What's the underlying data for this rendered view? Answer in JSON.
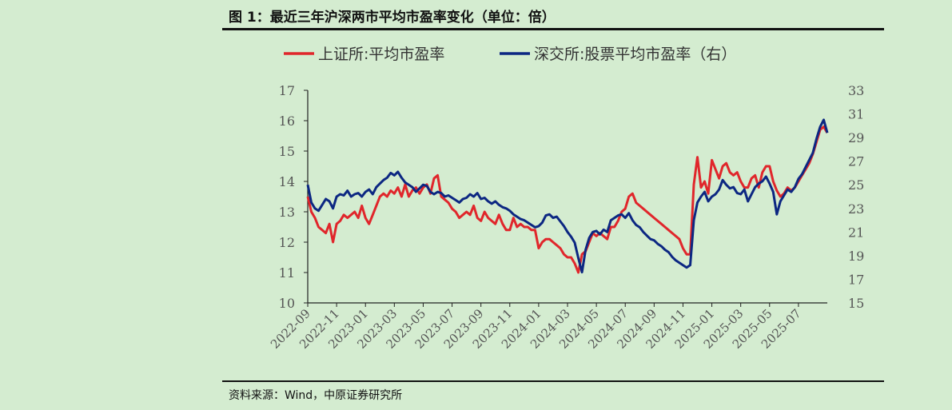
{
  "figure_title": "图 1：最近三年沪深两市平均市盈率变化（单位：倍）",
  "source": "资料来源：Wind，中原证券研究所",
  "chart_data": {
    "type": "line",
    "title": "图 1：最近三年沪深两市平均市盈率变化（单位：倍）",
    "x_tick_labels": [
      "2022-09",
      "2022-11",
      "2023-01",
      "2023-03",
      "2023-05",
      "2023-07",
      "2023-09",
      "2023-11",
      "2024-01",
      "2024-03",
      "2024-05",
      "2024-07",
      "2024-09",
      "2024-11",
      "2025-01",
      "2025-03",
      "2025-05",
      "2025-07"
    ],
    "x_range": [
      0,
      36
    ],
    "y_left": {
      "ylim": [
        10,
        17
      ],
      "ticks": [
        "10",
        "11",
        "12",
        "13",
        "14",
        "15",
        "16",
        "17"
      ]
    },
    "y_right": {
      "ylim": [
        15,
        33
      ],
      "ticks": [
        "15",
        "17",
        "19",
        "21",
        "23",
        "25",
        "27",
        "29",
        "31",
        "33"
      ]
    },
    "grid": false,
    "legend_position": "top",
    "series": [
      {
        "name": "上证所:平均市盈率",
        "axis": "left",
        "color": "#e0262b",
        "points": [
          [
            0.0,
            13.5
          ],
          [
            0.25,
            13.0
          ],
          [
            0.5,
            12.8
          ],
          [
            0.75,
            12.5
          ],
          [
            1.0,
            12.4
          ],
          [
            1.25,
            12.3
          ],
          [
            1.5,
            12.6
          ],
          [
            1.75,
            12.0
          ],
          [
            2.0,
            12.6
          ],
          [
            2.25,
            12.7
          ],
          [
            2.5,
            12.9
          ],
          [
            2.75,
            12.8
          ],
          [
            3.0,
            12.9
          ],
          [
            3.25,
            13.0
          ],
          [
            3.5,
            12.8
          ],
          [
            3.75,
            13.2
          ],
          [
            4.0,
            12.8
          ],
          [
            4.25,
            12.6
          ],
          [
            4.5,
            12.9
          ],
          [
            4.75,
            13.2
          ],
          [
            5.0,
            13.5
          ],
          [
            5.25,
            13.6
          ],
          [
            5.5,
            13.5
          ],
          [
            5.75,
            13.7
          ],
          [
            6.0,
            13.6
          ],
          [
            6.25,
            13.8
          ],
          [
            6.5,
            13.5
          ],
          [
            6.75,
            13.9
          ],
          [
            7.0,
            13.5
          ],
          [
            7.25,
            13.7
          ],
          [
            7.5,
            13.8
          ],
          [
            7.75,
            13.6
          ],
          [
            8.0,
            13.8
          ],
          [
            8.25,
            13.9
          ],
          [
            8.5,
            13.6
          ],
          [
            8.75,
            14.1
          ],
          [
            9.0,
            14.2
          ],
          [
            9.25,
            13.5
          ],
          [
            9.5,
            13.4
          ],
          [
            9.75,
            13.3
          ],
          [
            10.0,
            13.1
          ],
          [
            10.25,
            13.0
          ],
          [
            10.5,
            12.8
          ],
          [
            10.75,
            12.9
          ],
          [
            11.0,
            13.0
          ],
          [
            11.25,
            12.9
          ],
          [
            11.5,
            13.2
          ],
          [
            11.75,
            12.8
          ],
          [
            12.0,
            12.7
          ],
          [
            12.25,
            13.0
          ],
          [
            12.5,
            12.8
          ],
          [
            12.75,
            12.7
          ],
          [
            13.0,
            12.6
          ],
          [
            13.25,
            12.9
          ],
          [
            13.5,
            12.6
          ],
          [
            13.75,
            12.4
          ],
          [
            14.0,
            12.4
          ],
          [
            14.25,
            12.8
          ],
          [
            14.5,
            12.5
          ],
          [
            14.75,
            12.6
          ],
          [
            15.0,
            12.5
          ],
          [
            15.25,
            12.5
          ],
          [
            15.5,
            12.4
          ],
          [
            15.75,
            12.4
          ],
          [
            16.0,
            11.8
          ],
          [
            16.25,
            12.0
          ],
          [
            16.5,
            12.1
          ],
          [
            16.75,
            12.1
          ],
          [
            17.0,
            12.0
          ],
          [
            17.25,
            11.9
          ],
          [
            17.5,
            11.8
          ],
          [
            17.75,
            11.6
          ],
          [
            18.0,
            11.5
          ],
          [
            18.25,
            11.5
          ],
          [
            18.5,
            11.3
          ],
          [
            18.75,
            11.0
          ],
          [
            19.0,
            11.6
          ],
          [
            19.25,
            11.7
          ],
          [
            19.5,
            12.0
          ],
          [
            19.75,
            12.3
          ],
          [
            20.0,
            12.2
          ],
          [
            20.25,
            12.3
          ],
          [
            20.5,
            12.2
          ],
          [
            20.75,
            12.1
          ],
          [
            21.0,
            12.5
          ],
          [
            21.25,
            12.5
          ],
          [
            21.5,
            12.7
          ],
          [
            21.75,
            13.0
          ],
          [
            22.0,
            13.1
          ],
          [
            22.25,
            13.5
          ],
          [
            22.5,
            13.6
          ],
          [
            22.75,
            13.3
          ],
          [
            23.0,
            13.2
          ],
          [
            23.25,
            13.1
          ],
          [
            23.5,
            13.0
          ],
          [
            23.75,
            12.9
          ],
          [
            24.0,
            12.8
          ],
          [
            24.25,
            12.7
          ],
          [
            24.5,
            12.6
          ],
          [
            24.75,
            12.5
          ],
          [
            25.0,
            12.4
          ],
          [
            25.25,
            12.3
          ],
          [
            25.5,
            12.2
          ],
          [
            25.75,
            12.1
          ],
          [
            26.0,
            11.8
          ],
          [
            26.25,
            11.6
          ],
          [
            26.5,
            11.6
          ],
          [
            26.75,
            13.9
          ],
          [
            27.0,
            14.8
          ],
          [
            27.25,
            13.8
          ],
          [
            27.5,
            14.0
          ],
          [
            27.75,
            13.6
          ],
          [
            28.0,
            14.7
          ],
          [
            28.25,
            14.4
          ],
          [
            28.5,
            14.1
          ],
          [
            28.75,
            14.5
          ],
          [
            29.0,
            14.6
          ],
          [
            29.25,
            14.3
          ],
          [
            29.5,
            14.2
          ],
          [
            29.75,
            14.3
          ],
          [
            30.0,
            14.0
          ],
          [
            30.25,
            13.8
          ],
          [
            30.5,
            13.8
          ],
          [
            30.75,
            14.1
          ],
          [
            31.0,
            14.2
          ],
          [
            31.25,
            13.8
          ],
          [
            31.5,
            14.3
          ],
          [
            31.75,
            14.5
          ],
          [
            32.0,
            14.5
          ],
          [
            32.25,
            14.0
          ],
          [
            32.5,
            13.7
          ],
          [
            32.75,
            13.5
          ],
          [
            33.0,
            13.6
          ],
          [
            33.25,
            13.8
          ],
          [
            33.5,
            13.7
          ],
          [
            33.75,
            13.8
          ],
          [
            34.0,
            14.0
          ],
          [
            34.25,
            14.2
          ],
          [
            34.5,
            14.4
          ],
          [
            34.75,
            14.6
          ],
          [
            35.0,
            14.9
          ],
          [
            35.25,
            15.3
          ],
          [
            35.5,
            15.7
          ],
          [
            35.75,
            15.8
          ],
          [
            36.0,
            15.6
          ]
        ]
      },
      {
        "name": "深交所:股票平均市盈率（右）",
        "axis": "right",
        "color": "#0c2782",
        "points": [
          [
            0.0,
            25.0
          ],
          [
            0.25,
            23.5
          ],
          [
            0.5,
            23.0
          ],
          [
            0.75,
            22.8
          ],
          [
            1.0,
            23.3
          ],
          [
            1.25,
            23.8
          ],
          [
            1.5,
            23.6
          ],
          [
            1.75,
            23.0
          ],
          [
            2.0,
            24.0
          ],
          [
            2.25,
            24.2
          ],
          [
            2.5,
            24.1
          ],
          [
            2.75,
            24.5
          ],
          [
            3.0,
            24.0
          ],
          [
            3.25,
            24.2
          ],
          [
            3.5,
            24.3
          ],
          [
            3.75,
            24.0
          ],
          [
            4.0,
            24.4
          ],
          [
            4.25,
            24.6
          ],
          [
            4.5,
            24.2
          ],
          [
            4.75,
            24.8
          ],
          [
            5.0,
            25.1
          ],
          [
            5.25,
            25.4
          ],
          [
            5.5,
            25.6
          ],
          [
            5.75,
            26.0
          ],
          [
            6.0,
            25.8
          ],
          [
            6.25,
            26.1
          ],
          [
            6.5,
            25.6
          ],
          [
            6.75,
            25.2
          ],
          [
            7.0,
            25.0
          ],
          [
            7.25,
            24.8
          ],
          [
            7.5,
            24.4
          ],
          [
            7.75,
            24.7
          ],
          [
            8.0,
            25.0
          ],
          [
            8.25,
            24.9
          ],
          [
            8.5,
            24.4
          ],
          [
            8.75,
            24.2
          ],
          [
            9.0,
            24.4
          ],
          [
            9.25,
            24.3
          ],
          [
            9.5,
            24.0
          ],
          [
            9.75,
            24.1
          ],
          [
            10.0,
            23.9
          ],
          [
            10.25,
            23.7
          ],
          [
            10.5,
            23.5
          ],
          [
            10.75,
            23.8
          ],
          [
            11.0,
            23.9
          ],
          [
            11.25,
            24.2
          ],
          [
            11.5,
            24.0
          ],
          [
            11.75,
            24.3
          ],
          [
            12.0,
            23.8
          ],
          [
            12.25,
            23.9
          ],
          [
            12.5,
            23.6
          ],
          [
            12.75,
            23.4
          ],
          [
            13.0,
            23.6
          ],
          [
            13.25,
            23.3
          ],
          [
            13.5,
            23.1
          ],
          [
            13.75,
            23.0
          ],
          [
            14.0,
            22.8
          ],
          [
            14.25,
            22.5
          ],
          [
            14.5,
            22.3
          ],
          [
            14.75,
            22.1
          ],
          [
            15.0,
            22.0
          ],
          [
            15.25,
            21.8
          ],
          [
            15.5,
            21.6
          ],
          [
            15.75,
            21.4
          ],
          [
            16.0,
            21.5
          ],
          [
            16.25,
            21.8
          ],
          [
            16.5,
            22.4
          ],
          [
            16.75,
            22.5
          ],
          [
            17.0,
            22.2
          ],
          [
            17.25,
            22.3
          ],
          [
            17.5,
            21.9
          ],
          [
            17.75,
            21.5
          ],
          [
            18.0,
            21.0
          ],
          [
            18.25,
            20.6
          ],
          [
            18.5,
            20.1
          ],
          [
            18.75,
            18.8
          ],
          [
            19.0,
            17.6
          ],
          [
            19.25,
            19.5
          ],
          [
            19.5,
            20.5
          ],
          [
            19.75,
            21.0
          ],
          [
            20.0,
            21.1
          ],
          [
            20.25,
            20.8
          ],
          [
            20.5,
            21.2
          ],
          [
            20.75,
            21.0
          ],
          [
            21.0,
            22.0
          ],
          [
            21.25,
            22.2
          ],
          [
            21.5,
            22.4
          ],
          [
            21.75,
            22.5
          ],
          [
            22.0,
            22.2
          ],
          [
            22.25,
            22.6
          ],
          [
            22.5,
            22.0
          ],
          [
            22.75,
            21.6
          ],
          [
            23.0,
            21.4
          ],
          [
            23.25,
            21.0
          ],
          [
            23.5,
            20.7
          ],
          [
            23.75,
            20.4
          ],
          [
            24.0,
            20.3
          ],
          [
            24.25,
            20.0
          ],
          [
            24.5,
            19.8
          ],
          [
            24.75,
            19.5
          ],
          [
            25.0,
            19.3
          ],
          [
            25.25,
            18.9
          ],
          [
            25.5,
            18.6
          ],
          [
            25.75,
            18.4
          ],
          [
            26.0,
            18.2
          ],
          [
            26.25,
            18.0
          ],
          [
            26.5,
            18.2
          ],
          [
            26.75,
            22.0
          ],
          [
            27.0,
            23.5
          ],
          [
            27.25,
            24.0
          ],
          [
            27.5,
            24.4
          ],
          [
            27.75,
            23.6
          ],
          [
            28.0,
            24.0
          ],
          [
            28.25,
            24.2
          ],
          [
            28.5,
            24.6
          ],
          [
            28.75,
            25.4
          ],
          [
            29.0,
            25.0
          ],
          [
            29.25,
            24.7
          ],
          [
            29.5,
            24.8
          ],
          [
            29.75,
            24.3
          ],
          [
            30.0,
            24.2
          ],
          [
            30.25,
            24.6
          ],
          [
            30.5,
            23.6
          ],
          [
            30.75,
            24.2
          ],
          [
            31.0,
            24.8
          ],
          [
            31.25,
            25.1
          ],
          [
            31.5,
            25.3
          ],
          [
            31.75,
            25.7
          ],
          [
            32.0,
            25.1
          ],
          [
            32.25,
            24.4
          ],
          [
            32.5,
            22.5
          ],
          [
            32.75,
            23.6
          ],
          [
            33.0,
            24.1
          ],
          [
            33.25,
            24.6
          ],
          [
            33.5,
            24.4
          ],
          [
            33.75,
            24.8
          ],
          [
            34.0,
            25.5
          ],
          [
            34.25,
            25.9
          ],
          [
            34.5,
            26.5
          ],
          [
            34.75,
            27.1
          ],
          [
            35.0,
            27.7
          ],
          [
            35.25,
            28.9
          ],
          [
            35.5,
            29.9
          ],
          [
            35.75,
            30.5
          ],
          [
            36.0,
            29.4
          ]
        ]
      }
    ]
  }
}
